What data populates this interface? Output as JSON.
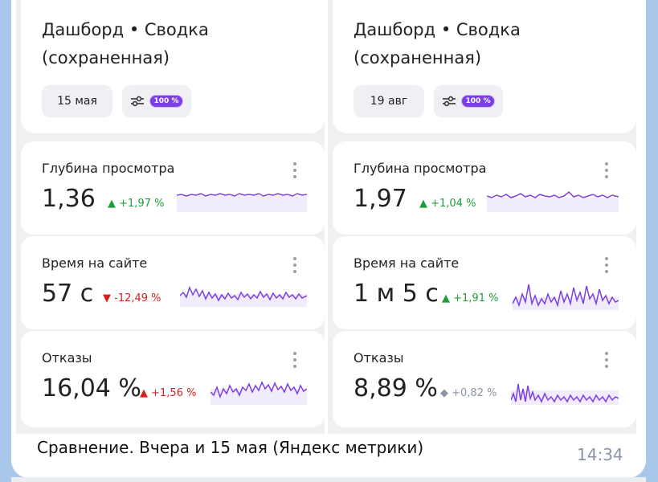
{
  "colors": {
    "accent": "#7b3fe4",
    "up": "#1e9e3a",
    "down": "#d62020",
    "neutral": "#8a94a6"
  },
  "left": {
    "title_line1": "Дашборд • Сводка",
    "title_line2": "(сохраненная)",
    "date": "15 мая",
    "filter_icon": "sliders-icon",
    "filter_badge": "100 %",
    "metrics": [
      {
        "label": "Глубина просмотра",
        "value": "1,36",
        "delta": "▲ +1,97 %",
        "trend": "up"
      },
      {
        "label": "Время на сайте",
        "value": "57 с",
        "delta": "▼ -12,49 %",
        "trend": "down"
      },
      {
        "label": "Отказы",
        "value": "16,04 %",
        "delta": "▲ +1,56 %",
        "trend": "down"
      }
    ]
  },
  "right": {
    "title_line1": "Дашборд • Сводка",
    "title_line2": "(сохраненная)",
    "date": "19 авг",
    "filter_icon": "sliders-icon",
    "filter_badge": "100 %",
    "metrics": [
      {
        "label": "Глубина просмотра",
        "value": "1,97",
        "delta": "▲ +1,04 %",
        "trend": "up"
      },
      {
        "label": "Время на сайте",
        "value": "1 м 5 с",
        "delta": "▲ +1,91 %",
        "trend": "up"
      },
      {
        "label": "Отказы",
        "value": "8,89 %",
        "delta": "◆ +0,82 %",
        "trend": "neutral"
      }
    ]
  },
  "message": {
    "text": "Сравнение. Вчера и 15 мая (Яндекс метрики)",
    "time": "14:34"
  }
}
